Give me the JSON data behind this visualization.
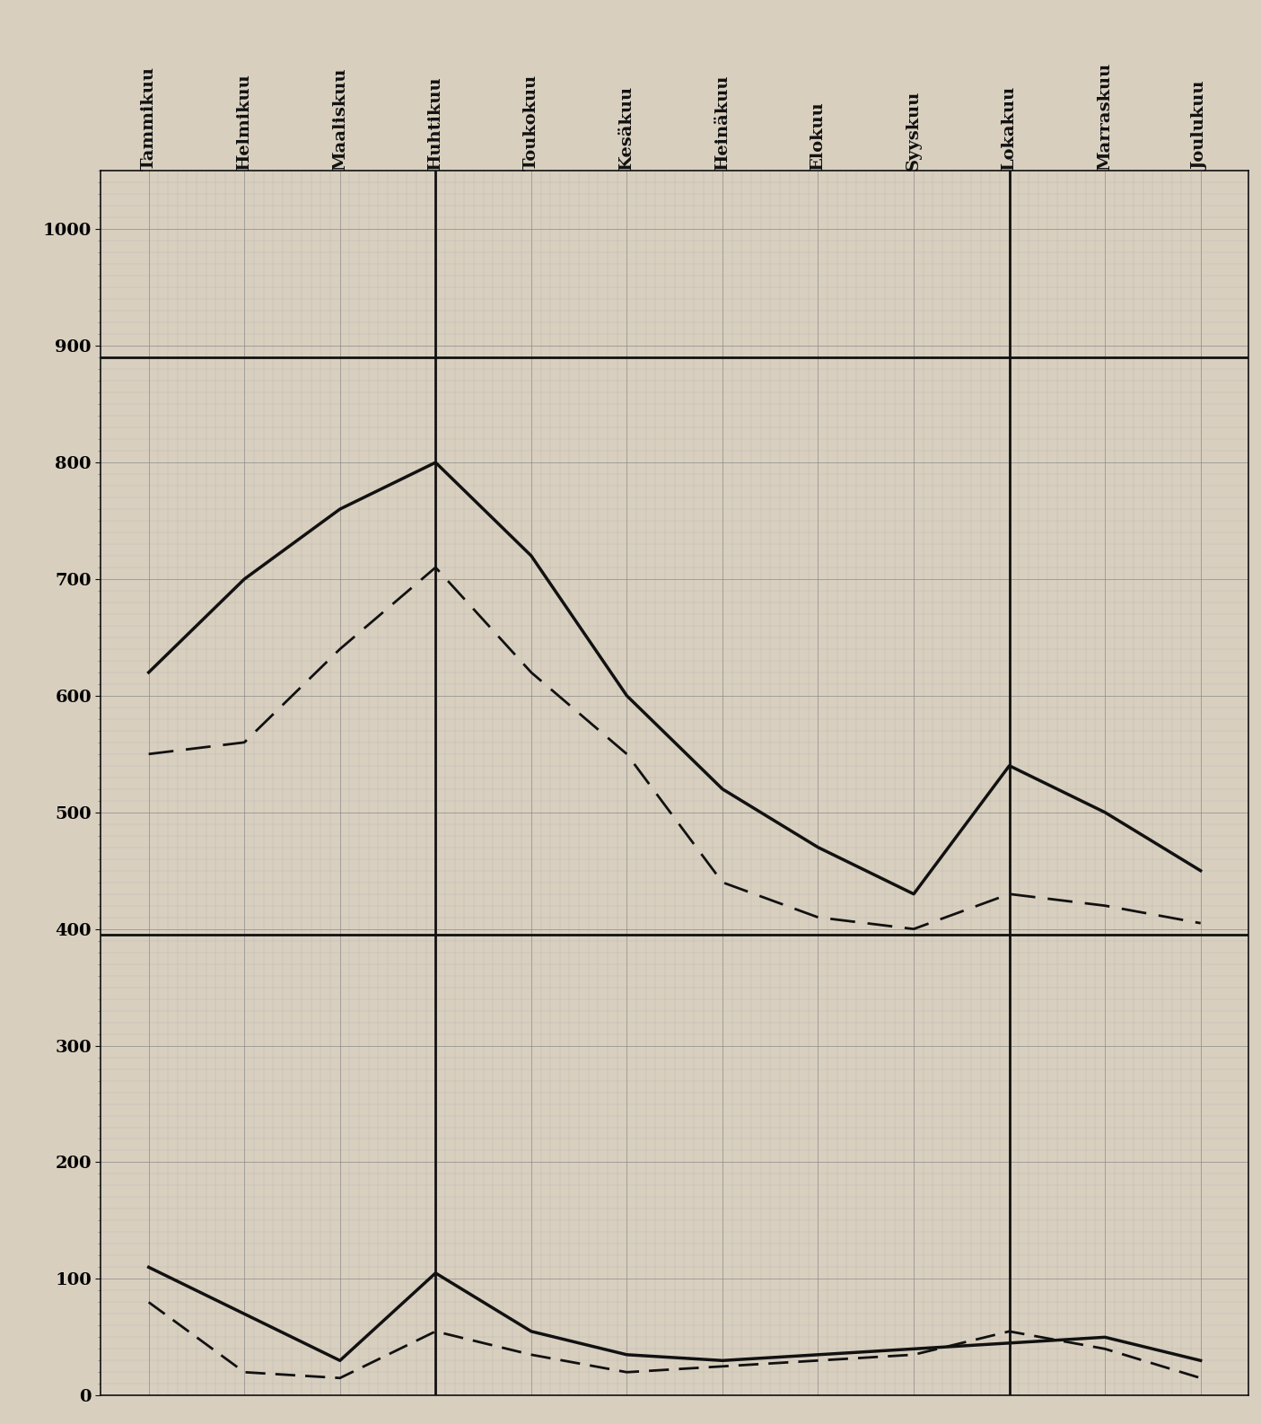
{
  "months": [
    "Tammikuu",
    "Helmikuu",
    "Maaliskuu",
    "Huhtikuu",
    "Toukokuu",
    "Kesäkuu",
    "Heinäkuu",
    "Elokuu",
    "Syyskuu",
    "Lokakuu",
    "Marraskuu",
    "Joulukuu"
  ],
  "solid_upper": [
    620,
    700,
    760,
    800,
    720,
    600,
    520,
    470,
    430,
    540,
    500,
    450
  ],
  "dashed_upper": [
    550,
    560,
    640,
    710,
    620,
    550,
    440,
    410,
    400,
    430,
    420,
    405
  ],
  "solid_lower": [
    110,
    70,
    30,
    105,
    55,
    35,
    30,
    35,
    40,
    45,
    50,
    30
  ],
  "dashed_lower": [
    80,
    20,
    15,
    55,
    35,
    20,
    25,
    30,
    35,
    55,
    40,
    15
  ],
  "ylim": [
    0,
    1050
  ],
  "yticks": [
    0,
    100,
    200,
    300,
    400,
    500,
    600,
    700,
    800,
    900,
    1000
  ],
  "hlines": [
    890,
    395
  ],
  "vlines_idx": [
    3,
    9
  ],
  "bg_color": "#d8cfbf",
  "grid_major_color": "#888888",
  "grid_minor_color": "#aaaaaa",
  "line_color": "#111111",
  "label_fontsize": 14
}
